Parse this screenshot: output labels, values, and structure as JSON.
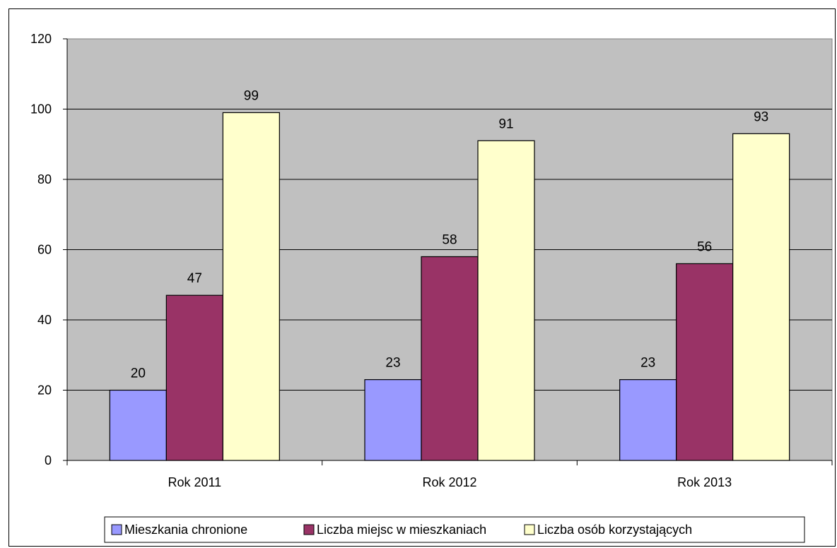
{
  "chart_data": {
    "type": "bar",
    "categories": [
      "Rok 2011",
      "Rok 2012",
      "Rok 2013"
    ],
    "series": [
      {
        "name": "Mieszkania chronione",
        "values": [
          20,
          23,
          23
        ],
        "color": "#9999ff"
      },
      {
        "name": "Liczba miejsc w mieszkaniach",
        "values": [
          47,
          58,
          56
        ],
        "color": "#993366"
      },
      {
        "name": "Liczba osób korzystających",
        "values": [
          99,
          91,
          93
        ],
        "color": "#ffffcc"
      }
    ],
    "ylim": [
      0,
      120
    ],
    "yticks": [
      0,
      20,
      40,
      60,
      80,
      100,
      120
    ],
    "grid": true,
    "plot_background": "#c0c0c0",
    "legend_position": "bottom",
    "data_labels": true
  }
}
